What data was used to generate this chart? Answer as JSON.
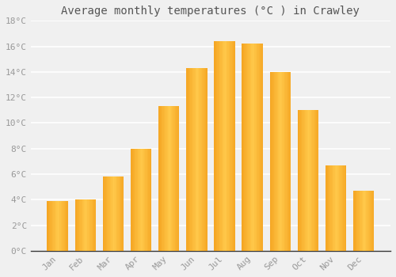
{
  "title": "Average monthly temperatures (°C ) in Crawley",
  "months": [
    "Jan",
    "Feb",
    "Mar",
    "Apr",
    "May",
    "Jun",
    "Jul",
    "Aug",
    "Sep",
    "Oct",
    "Nov",
    "Dec"
  ],
  "values": [
    3.9,
    4.0,
    5.8,
    8.0,
    11.3,
    14.3,
    16.4,
    16.2,
    14.0,
    11.0,
    6.7,
    4.7
  ],
  "bar_color_left": "#F5A623",
  "bar_color_center": "#FFC84A",
  "bar_color_right": "#F5A623",
  "ylim": [
    0,
    18
  ],
  "yticks": [
    0,
    2,
    4,
    6,
    8,
    10,
    12,
    14,
    16,
    18
  ],
  "ytick_labels": [
    "0°C",
    "2°C",
    "4°C",
    "6°C",
    "8°C",
    "10°C",
    "12°C",
    "14°C",
    "16°C",
    "18°C"
  ],
  "background_color": "#f0f0f0",
  "grid_color": "#ffffff",
  "title_fontsize": 10,
  "tick_fontsize": 8,
  "font_color": "#999999",
  "bar_width": 0.75
}
